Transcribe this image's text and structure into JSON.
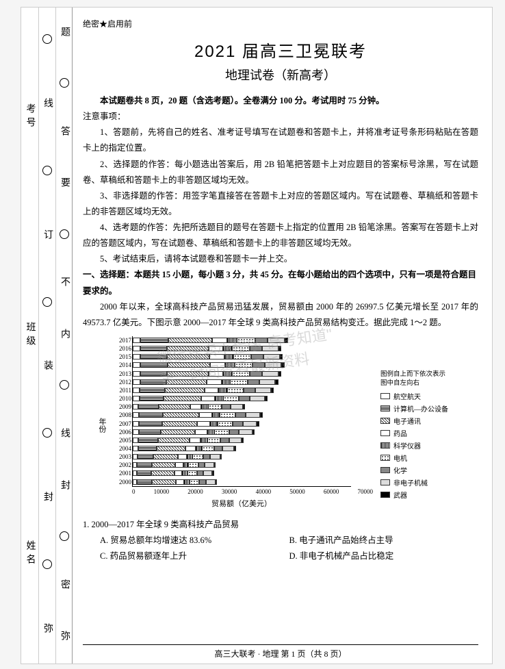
{
  "header": {
    "secret": "绝密★启用前",
    "title": "2021 届高三卫冕联考",
    "subtitle": "地理试卷（新高考）"
  },
  "intro": {
    "summary": "本试题卷共 8 页，20 题（含选考题）。全卷满分 100 分。考试用时 75 分钟。",
    "notice_head": "注意事项：",
    "notice1": "1、答题前，先将自己的姓名、准考证号填写在试题卷和答题卡上，并将准考证号条形码粘贴在答题卡上的指定位置。",
    "notice2": "2、选择题的作答：每小题选出答案后，用 2B 铅笔把答题卡上对应题目的答案标号涂黑，写在试题卷、草稿纸和答题卡上的非答题区域均无效。",
    "notice3": "3、非选择题的作答：用签字笔直接答在答题卡上对应的答题区域内。写在试题卷、草稿纸和答题卡上的非答题区域均无效。",
    "notice4": "4、选考题的作答：先把所选题目的题号在答题卡上指定的位置用 2B 铅笔涂黑。答案写在答题卡上对应的答题区域内，写在试题卷、草稿纸和答题卡上的非答题区域均无效。",
    "notice5": "5、考试结束后，请将本试题卷和答题卡一并上交。"
  },
  "section1": {
    "head": "一、选择题：本题共 15 小题，每小题 3 分，共 45 分。在每小题给出的四个选项中，只有一项是符合题目要求的。",
    "context": "2000 年以来，全球高科技产品贸易迅猛发展，贸易额由 2000 年的 26997.5 亿美元增长至 2017 年的 49573.7 亿美元。下图示意 2000—2017 年全球 9 类高科技产品贸易结构变迁。据此完成 1～2 题。"
  },
  "chart": {
    "type": "stacked-bar-horizontal",
    "ylabel": "年份",
    "xlabel": "贸易额（亿美元）",
    "xticks": [
      "0",
      "10000",
      "20000",
      "30000",
      "40000",
      "50000",
      "60000",
      "70000"
    ],
    "xlim": [
      0,
      70000
    ],
    "years": [
      "2000",
      "2001",
      "2002",
      "2003",
      "2004",
      "2005",
      "2006",
      "2007",
      "2008",
      "2009",
      "2010",
      "2011",
      "2012",
      "2013",
      "2014",
      "2015",
      "2016",
      "2017"
    ],
    "totals": [
      26997,
      26000,
      26500,
      28500,
      33000,
      35500,
      39000,
      40500,
      41500,
      36000,
      43000,
      45000,
      46500,
      47500,
      48500,
      48000,
      47500,
      49573
    ],
    "segments_pct": [
      0.05,
      0.18,
      0.28,
      0.1,
      0.06,
      0.12,
      0.08,
      0.11,
      0.02
    ],
    "series": [
      {
        "name": "航空航天",
        "pattern": "#fff"
      },
      {
        "name": "计算机—办公设备",
        "pattern": "repeating-linear-gradient(0deg,#000,#000 1px,#fff 1px,#fff 2px)"
      },
      {
        "name": "电子通讯",
        "pattern": "repeating-linear-gradient(45deg,#333,#333 1px,#fff 1px,#fff 3px)"
      },
      {
        "name": "药品",
        "pattern": "#fff"
      },
      {
        "name": "科学仪器",
        "pattern": "repeating-linear-gradient(90deg,#000,#000 1px,#fff 1px,#fff 2px)"
      },
      {
        "name": "电机",
        "pattern": "radial-gradient(#333 30%, #fff 30%)"
      },
      {
        "name": "化学",
        "pattern": "#888"
      },
      {
        "name": "非电子机械",
        "pattern": "#ddd"
      },
      {
        "name": "武器",
        "pattern": "#000"
      }
    ],
    "legend_header1": "图例自上而下依次表示",
    "legend_header2": "图中自左向右",
    "background_color": "#ffffff",
    "axis_color": "#000000",
    "label_fontsize": 11,
    "tick_fontsize": 9
  },
  "q1": {
    "stem": "1. 2000—2017 年全球 9 类高科技产品贸易",
    "optA": "A. 贸易总额年均增速达 83.6%",
    "optB": "B. 电子通讯产品始终占主导",
    "optC": "C. 药品贸易额逐年上升",
    "optD": "D. 非电子机械产品占比稳定"
  },
  "side": {
    "col1_items": [
      "考号",
      "班级",
      "姓名"
    ],
    "col2_text": "线封密",
    "col3_items": [
      "题",
      "答",
      "要",
      "不",
      "内",
      "线",
      "封",
      "密",
      "弥",
      "弥"
    ]
  },
  "footer": "高三大联考 · 地理 第 1 页（共 8 页）",
  "watermark": {
    "line1": "微信搜索小程序\"高考知道\"",
    "line2": "第一时间查看最新资料"
  }
}
